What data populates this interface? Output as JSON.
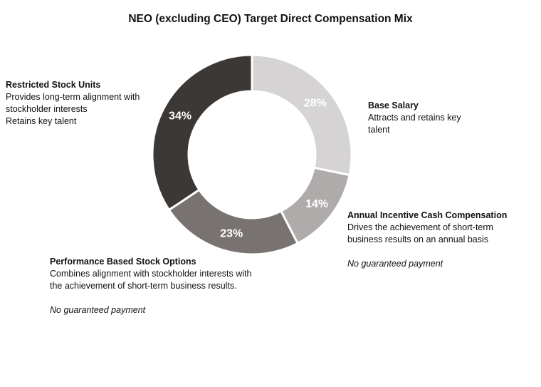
{
  "chart_data": {
    "type": "pie",
    "variant": "donut",
    "title": "NEO (excluding CEO) Target Direct Compensation Mix",
    "categories": [
      "Base Salary",
      "Annual Incentive Cash Compensation",
      "Performance Based Stock Options",
      "Restricted Stock Units"
    ],
    "values": [
      28,
      14,
      23,
      34
    ],
    "labels": [
      "28%",
      "14%",
      "23%",
      "34%"
    ],
    "colors": [
      "#d5d3d3",
      "#aeabaa",
      "#787371",
      "#3c3836"
    ],
    "label_colors": [
      "#ffffff",
      "#ffffff",
      "#ffffff",
      "#ffffff"
    ]
  },
  "annotations": {
    "base_salary": {
      "title": "Base Salary",
      "lines": [
        "Attracts and retains key",
        "talent"
      ]
    },
    "annual_incentive": {
      "title": "Annual Incentive Cash Compensation",
      "lines": [
        "Drives the achievement of short-term",
        "business results on an annual basis"
      ],
      "note": "No guaranteed payment"
    },
    "performance_options": {
      "title": "Performance Based Stock Options",
      "lines": [
        "Combines alignment with stockholder interests with",
        "the achievement of short-term business results."
      ],
      "note": "No guaranteed payment"
    },
    "rsu": {
      "title": "Restricted Stock Units",
      "lines": [
        "Provides long-term alignment with",
        "stockholder interests",
        "Retains key talent"
      ]
    }
  }
}
